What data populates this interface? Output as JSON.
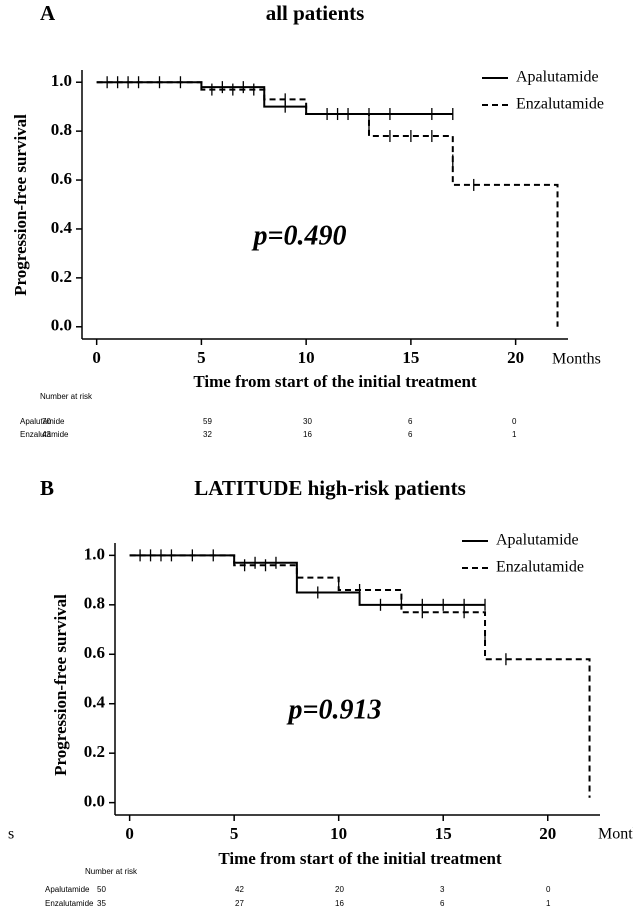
{
  "chart_data": [
    {
      "type": "line",
      "step": true,
      "panel_label": "A",
      "title": "all patients",
      "ylabel": "Progression-free survival",
      "xlabel": "Time from start of the initial treatment",
      "x_unit_label": "Months",
      "annotation": "p=0.490",
      "xlim": [
        -0.7,
        22.5
      ],
      "xticks": [
        0,
        5,
        10,
        15,
        20
      ],
      "ylim": [
        -0.05,
        1.05
      ],
      "yticks": [
        {
          "value": 0,
          "label": "0.0"
        },
        0.2,
        0.4,
        0.6,
        0.8,
        {
          "value": 1,
          "label": "1.0"
        }
      ],
      "series": [
        {
          "name": "Apalutamide",
          "color": "#000000",
          "dash": false,
          "x": [
            0,
            5,
            8,
            10,
            17
          ],
          "values": [
            1,
            0.98,
            0.9,
            0.87,
            0.87
          ],
          "censored": {
            "x": [
              1,
              2,
              3,
              4,
              6,
              7,
              9,
              11,
              12,
              13,
              14,
              16,
              17
            ],
            "values": [
              1,
              1,
              1,
              1,
              0.98,
              0.98,
              0.9,
              0.87,
              0.87,
              0.87,
              0.87,
              0.87,
              0.87
            ]
          }
        },
        {
          "name": "Enzalutamide",
          "color": "#000000",
          "dash": true,
          "x": [
            0,
            5,
            8,
            10,
            13,
            17,
            22
          ],
          "values": [
            1,
            0.97,
            0.93,
            0.87,
            0.78,
            0.58,
            0
          ],
          "censored": {
            "x": [
              0.5,
              1.5,
              5.5,
              6.5,
              7.5,
              9,
              11.5,
              13,
              14,
              15,
              16,
              17,
              18
            ],
            "values": [
              1,
              1,
              0.97,
              0.97,
              0.97,
              0.93,
              0.87,
              0.82,
              0.78,
              0.78,
              0.78,
              0.68,
              0.58
            ]
          }
        }
      ],
      "risk_table": {
        "title": "Number at risk",
        "rows": [
          {
            "name": "Apalutamide",
            "values": [
              70,
              59,
              30,
              6,
              0
            ]
          },
          {
            "name": "Enzalutamide",
            "values": [
              43,
              32,
              16,
              6,
              1
            ]
          }
        ]
      }
    },
    {
      "type": "line",
      "step": true,
      "panel_label": "B",
      "title": "LATITUDE high-risk patients",
      "side_mark": "s",
      "ylabel": "Progression-free survival",
      "xlabel": "Time from start of the initial treatment",
      "x_unit_label": "Months",
      "annotation": "p=0.913",
      "xlim": [
        -0.7,
        22.5
      ],
      "xticks": [
        0,
        5,
        10,
        15,
        20
      ],
      "ylim": [
        -0.05,
        1.05
      ],
      "yticks": [
        {
          "value": 0,
          "label": "0.0"
        },
        0.2,
        0.4,
        0.6,
        0.8,
        {
          "value": 1,
          "label": "1.0"
        }
      ],
      "series": [
        {
          "name": "Apalutamide",
          "color": "#000000",
          "dash": false,
          "x": [
            0,
            5,
            8,
            11,
            17
          ],
          "values": [
            1,
            0.97,
            0.85,
            0.8,
            0.8
          ],
          "censored": {
            "x": [
              1,
              2,
              3,
              4,
              6,
              7,
              9,
              12,
              14,
              15,
              16,
              17
            ],
            "values": [
              1,
              1,
              1,
              1,
              0.97,
              0.97,
              0.85,
              0.8,
              0.8,
              0.8,
              0.8,
              0.8
            ]
          }
        },
        {
          "name": "Enzalutamide",
          "color": "#000000",
          "dash": true,
          "x": [
            0,
            5,
            8,
            10,
            13,
            17,
            22
          ],
          "values": [
            1,
            0.96,
            0.91,
            0.86,
            0.77,
            0.58,
            0.02
          ],
          "censored": {
            "x": [
              0.5,
              1.5,
              5.5,
              6.5,
              8,
              10,
              11,
              13,
              14,
              16,
              17,
              18
            ],
            "values": [
              1,
              1,
              0.96,
              0.96,
              0.93,
              0.88,
              0.86,
              0.81,
              0.77,
              0.77,
              0.67,
              0.58
            ]
          }
        }
      ],
      "risk_table": {
        "title": "Number at risk",
        "rows": [
          {
            "name": "Apalutamide",
            "values": [
              50,
              42,
              20,
              3,
              0
            ]
          },
          {
            "name": "Enzalutamide",
            "values": [
              35,
              27,
              16,
              6,
              1
            ]
          }
        ]
      }
    }
  ]
}
